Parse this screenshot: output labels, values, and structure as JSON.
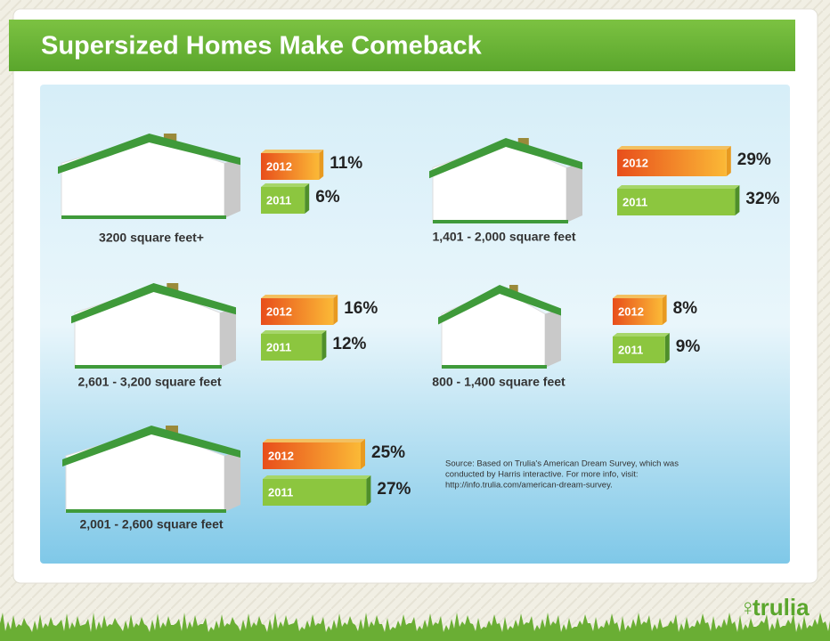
{
  "title": "Supersized Homes Make Comeback",
  "groups": [
    {
      "label": "3200 square feet+",
      "bars": [
        {
          "year": "2012",
          "value": 11,
          "value_label": "11%"
        },
        {
          "year": "2011",
          "value": 6,
          "value_label": "6%"
        }
      ]
    },
    {
      "label": "1,401 - 2,000 square feet",
      "bars": [
        {
          "year": "2012",
          "value": 29,
          "value_label": "29%"
        },
        {
          "year": "2011",
          "value": 32,
          "value_label": "32%"
        }
      ]
    },
    {
      "label": "2,601 - 3,200 square feet",
      "bars": [
        {
          "year": "2012",
          "value": 16,
          "value_label": "16%"
        },
        {
          "year": "2011",
          "value": 12,
          "value_label": "12%"
        }
      ]
    },
    {
      "label": "800 - 1,400 square feet",
      "bars": [
        {
          "year": "2012",
          "value": 8,
          "value_label": "8%"
        },
        {
          "year": "2011",
          "value": 9,
          "value_label": "9%"
        }
      ]
    },
    {
      "label": "2,001 - 2,600 square feet",
      "bars": [
        {
          "year": "2012",
          "value": 25,
          "value_label": "25%"
        },
        {
          "year": "2011",
          "value": 27,
          "value_label": "27%"
        }
      ]
    }
  ],
  "source": [
    "Source: Based on Trulia's American Dream Survey, which was",
    "conducted by Harris interactive. For more info, visit:",
    "http://info.trulia.com/american-dream-survey."
  ],
  "logo": "trulia"
}
